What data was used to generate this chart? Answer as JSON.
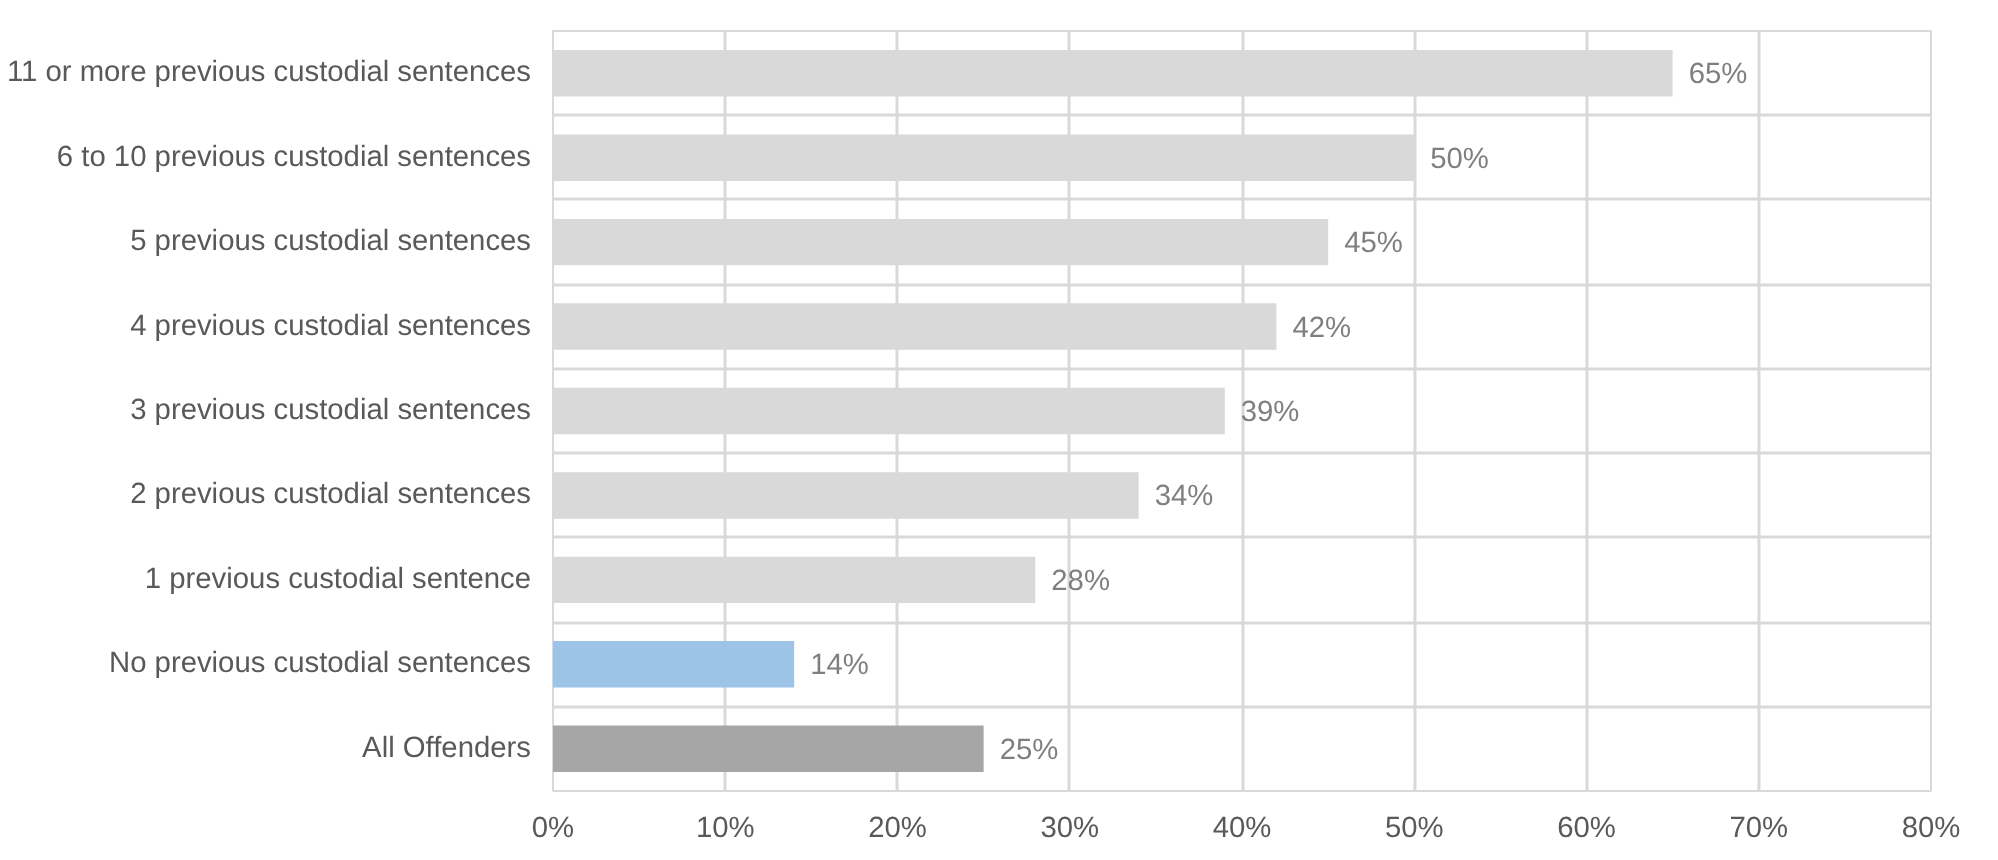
{
  "chart_data": {
    "type": "bar",
    "orientation": "horizontal",
    "categories": [
      "11 or more previous custodial sentences",
      "6 to 10 previous custodial sentences",
      "5 previous custodial sentences",
      "4 previous custodial sentences",
      "3 previous custodial sentences",
      "2 previous custodial sentences",
      "1 previous custodial sentence",
      "No previous custodial sentences",
      "All Offenders"
    ],
    "values": [
      65,
      50,
      45,
      42,
      39,
      34,
      28,
      14,
      25
    ],
    "colors": [
      "#d9d9d9",
      "#d9d9d9",
      "#d9d9d9",
      "#d9d9d9",
      "#d9d9d9",
      "#d9d9d9",
      "#d9d9d9",
      "#9dc3e6",
      "#a6a6a6"
    ],
    "value_labels": [
      "65%",
      "50%",
      "45%",
      "42%",
      "39%",
      "34%",
      "28%",
      "14%",
      "25%"
    ],
    "xlim": [
      0,
      80
    ],
    "xticks": [
      {
        "value": 0,
        "label": "0%"
      },
      {
        "value": 10,
        "label": "10%"
      },
      {
        "value": 20,
        "label": "20%"
      },
      {
        "value": 30,
        "label": "30%"
      },
      {
        "value": 40,
        "label": "40%"
      },
      {
        "value": 50,
        "label": "50%"
      },
      {
        "value": 60,
        "label": "60%"
      },
      {
        "value": 70,
        "label": "70%"
      },
      {
        "value": 80,
        "label": "80%"
      }
    ],
    "grid": true
  }
}
